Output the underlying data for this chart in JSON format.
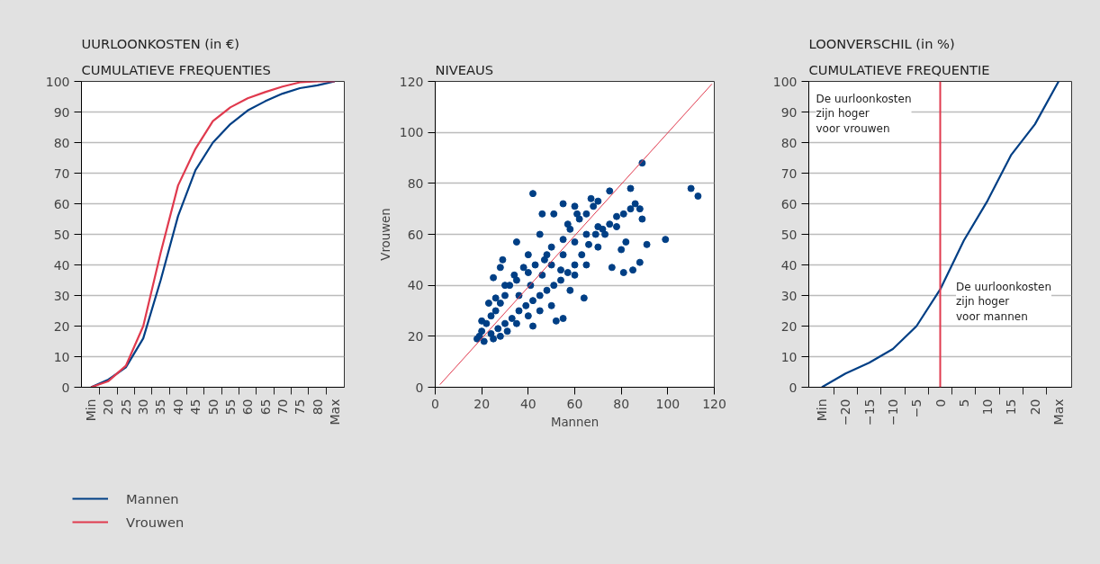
{
  "chart_data": [
    {
      "type": "line",
      "title": "UURLOONKOSTEN (in €)",
      "subtitle": "CUMULATIEVE FREQUENTIES",
      "categories": [
        "Min",
        "20",
        "25",
        "30",
        "35",
        "40",
        "45",
        "50",
        "55",
        "60",
        "65",
        "70",
        "75",
        "80",
        "Max"
      ],
      "series": [
        {
          "name": "Mannen",
          "color": "#003f85",
          "values": [
            0,
            2.5,
            6.5,
            16,
            35,
            56,
            71,
            80,
            86,
            90.5,
            93.5,
            96,
            97.8,
            98.7,
            100
          ]
        },
        {
          "name": "Vrouwen",
          "color": "#e03a4e",
          "values": [
            0,
            2,
            7,
            20,
            44,
            66,
            78,
            87,
            91.5,
            94.5,
            96.5,
            98.3,
            99.7,
            100,
            100
          ]
        }
      ],
      "ylim": [
        0,
        100
      ],
      "yticks": [
        0,
        10,
        20,
        30,
        40,
        50,
        60,
        70,
        80,
        90,
        100
      ],
      "grid": "y",
      "legend": "bottom"
    },
    {
      "type": "scatter",
      "title": "NIVEAUS",
      "xlabel": "Mannen",
      "ylabel": "Vrouwen",
      "series": [
        {
          "type": "scatter",
          "color": "#003f85",
          "x": [
            42,
            89,
            110,
            113,
            99,
            91,
            88,
            81,
            85,
            84,
            86,
            88,
            89,
            75,
            70,
            67,
            55,
            60,
            51,
            46,
            35,
            29,
            25,
            28,
            52,
            55,
            42,
            64,
            58,
            76,
            80,
            82,
            78,
            73,
            70,
            65,
            60,
            54,
            48,
            45,
            40,
            38,
            34,
            32,
            30,
            28,
            26,
            24,
            22,
            20,
            19,
            18,
            21,
            24,
            27,
            30,
            33,
            36,
            39,
            42,
            45,
            48,
            51,
            54,
            57,
            60,
            63,
            66,
            69,
            72,
            75,
            78,
            81,
            84,
            20,
            23,
            26,
            30,
            35,
            40,
            43,
            47,
            50,
            55,
            58,
            62,
            65,
            68,
            61,
            57,
            50,
            45,
            40,
            35,
            31,
            28,
            25,
            36,
            41,
            46,
            50,
            55,
            60,
            65,
            70
          ],
          "values": [
            76,
            88,
            78,
            75,
            58,
            56,
            49,
            45,
            46,
            78,
            72,
            70,
            66,
            77,
            73,
            74,
            72,
            71,
            68,
            68,
            57,
            50,
            43,
            47,
            26,
            27,
            24,
            35,
            38,
            47,
            54,
            57,
            63,
            60,
            55,
            48,
            44,
            46,
            52,
            60,
            52,
            47,
            44,
            40,
            36,
            33,
            30,
            28,
            25,
            22,
            20,
            19,
            18,
            21,
            23,
            25,
            27,
            30,
            32,
            34,
            36,
            38,
            40,
            42,
            45,
            48,
            52,
            56,
            60,
            62,
            64,
            67,
            68,
            70,
            26,
            33,
            35,
            40,
            42,
            45,
            48,
            50,
            55,
            58,
            62,
            66,
            68,
            71,
            68,
            64,
            32,
            30,
            28,
            25,
            22,
            20,
            19,
            36,
            40,
            44,
            48,
            52,
            57,
            60,
            63
          ]
        },
        {
          "type": "line",
          "color": "#e03a4e",
          "x": [
            2,
            119
          ],
          "values": [
            1,
            119
          ]
        }
      ],
      "xlim": [
        0,
        120
      ],
      "xticks": [
        0,
        20,
        40,
        60,
        80,
        100,
        120
      ],
      "ylim": [
        0,
        120
      ],
      "yticks": [
        0,
        20,
        40,
        60,
        80,
        100,
        120
      ],
      "grid": "y"
    },
    {
      "type": "line",
      "title": "LOONVERSCHIL (in %)",
      "subtitle": "CUMULATIEVE FREQUENTIE",
      "categories": [
        "Min",
        "−20",
        "−15",
        "−10",
        "−5",
        "0",
        "5",
        "10",
        "15",
        "20",
        "Max"
      ],
      "series": [
        {
          "color": "#003f85",
          "values": [
            0,
            4.5,
            8,
            12.5,
            20,
            32,
            48,
            61,
            76,
            86,
            100
          ]
        }
      ],
      "ref_lines": [
        {
          "axis": "x",
          "value": "0",
          "color": "#e03a4e"
        }
      ],
      "annotations": [
        "De uurloonkosten\nzijn hoger\nvoor vrouwen",
        "De uurloonkosten\nzijn hoger\nvoor mannen"
      ],
      "ylim": [
        0,
        100
      ],
      "yticks": [
        0,
        10,
        20,
        30,
        40,
        50,
        60,
        70,
        80,
        90,
        100
      ],
      "grid": "y"
    }
  ]
}
